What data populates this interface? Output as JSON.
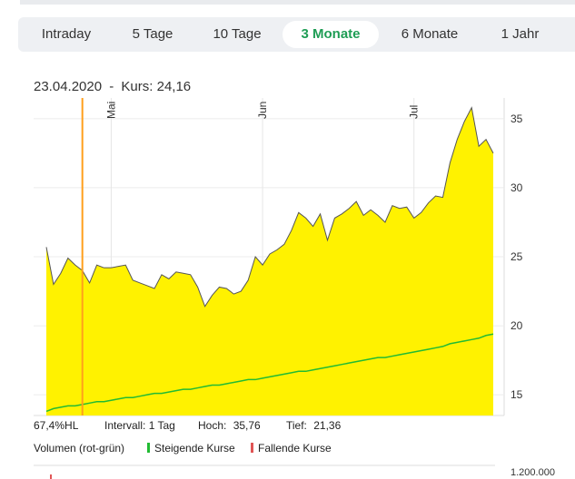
{
  "tabs": [
    {
      "label": "Intraday",
      "active": false
    },
    {
      "label": "5 Tage",
      "active": false
    },
    {
      "label": "10 Tage",
      "active": false
    },
    {
      "label": "3 Monate",
      "active": true
    },
    {
      "label": "6 Monate",
      "active": false
    },
    {
      "label": "1 Jahr",
      "active": false
    }
  ],
  "info": {
    "date": "23.04.2020",
    "separator": "-",
    "kurs_label": "Kurs:",
    "kurs_value": "24,16"
  },
  "stats": {
    "hl": "67,4%HL",
    "interval_label": "Intervall:",
    "interval_value": "1 Tag",
    "hoch_label": "Hoch:",
    "hoch_value": "35,76",
    "tief_label": "Tief:",
    "tief_value": "21,36"
  },
  "volume": {
    "label": "Volumen (rot-grün)",
    "rising_label": "Steigende Kurse",
    "rising_color": "#22bb33",
    "falling_label": "Fallende Kurse",
    "falling_color": "#e05555",
    "axis_tick": "1.200.000"
  },
  "colors": {
    "area": "#fff200",
    "area_line": "#555555",
    "ma_line": "#22bb33",
    "cursor": "#ff9f1c",
    "active_tab": "#1f9d55"
  },
  "chart_data": {
    "type": "area",
    "ylim": [
      13.5,
      36.5
    ],
    "yticks": [
      15,
      20,
      25,
      30,
      35
    ],
    "month_labels": [
      {
        "label": "Mai",
        "index": 9
      },
      {
        "label": "Jun",
        "index": 30
      },
      {
        "label": "Jul",
        "index": 51
      }
    ],
    "cursor_index": 5,
    "series": [
      {
        "values": [
          25.7,
          23.0,
          23.8,
          24.9,
          24.4,
          24.0,
          23.1,
          24.4,
          24.2,
          24.2,
          24.3,
          24.4,
          23.3,
          23.1,
          22.9,
          22.7,
          23.7,
          23.4,
          23.9,
          23.8,
          23.7,
          22.8,
          21.4,
          22.2,
          22.8,
          22.7,
          22.3,
          22.5,
          23.3,
          25.0,
          24.4,
          25.2,
          25.5,
          25.9,
          26.9,
          28.2,
          27.8,
          27.2,
          28.1,
          26.2,
          27.8,
          28.1,
          28.5,
          29.0,
          28.0,
          28.4,
          28.0,
          27.5,
          28.7,
          28.5,
          28.6,
          27.8,
          28.2,
          28.9,
          29.4,
          29.3,
          31.8,
          33.5,
          34.8,
          35.8,
          33.0,
          33.5,
          32.5
        ]
      },
      {
        "values": [
          13.8,
          14.0,
          14.1,
          14.2,
          14.2,
          14.3,
          14.4,
          14.5,
          14.5,
          14.6,
          14.7,
          14.8,
          14.8,
          14.9,
          15.0,
          15.1,
          15.1,
          15.2,
          15.3,
          15.4,
          15.4,
          15.5,
          15.6,
          15.7,
          15.7,
          15.8,
          15.9,
          16.0,
          16.1,
          16.1,
          16.2,
          16.3,
          16.4,
          16.5,
          16.6,
          16.7,
          16.7,
          16.8,
          16.9,
          17.0,
          17.1,
          17.2,
          17.3,
          17.4,
          17.5,
          17.6,
          17.7,
          17.7,
          17.8,
          17.9,
          18.0,
          18.1,
          18.2,
          18.3,
          18.4,
          18.5,
          18.7,
          18.8,
          18.9,
          19.0,
          19.1,
          19.3,
          19.4
        ]
      }
    ]
  }
}
